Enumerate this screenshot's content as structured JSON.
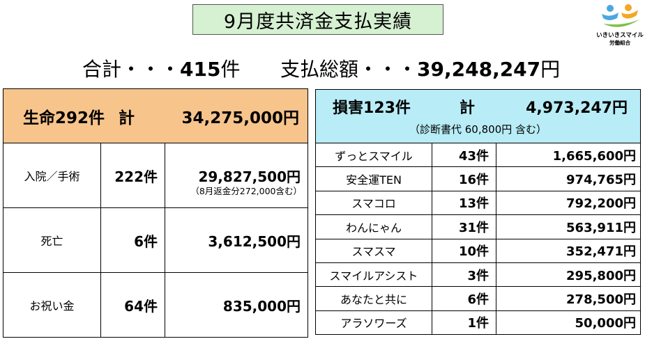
{
  "title": "9月度共済金支払実績",
  "logo": {
    "line1": "いきいきスマイル",
    "line2": "労働組合",
    "colors": [
      "#f5a623",
      "#4aa8e0",
      "#7cc243"
    ]
  },
  "summary": {
    "count_label": "合計・・・",
    "count_value": "415",
    "count_unit": "件",
    "total_label": "支払総額・・・",
    "total_value": "39,248,247",
    "total_unit": "円"
  },
  "life": {
    "header_name": "生命292件",
    "header_kei": "計",
    "header_amount": "34,275,000円",
    "rows": [
      {
        "label": "入院／手術",
        "count": "222件",
        "amount": "29,827,500円",
        "note": "（8月返金分272,000含む）"
      },
      {
        "label": "死亡",
        "count": "6件",
        "amount": "3,612,500円"
      },
      {
        "label": "お祝い金",
        "count": "64件",
        "amount": "835,000円"
      }
    ]
  },
  "damage": {
    "header_name": "損害123件",
    "header_kei": "計",
    "header_amount": "4,973,247円",
    "header_note": "（診断書代 60,800円 含む）",
    "rows": [
      {
        "label": "ずっとスマイル",
        "count": "43件",
        "amount": "1,665,600円"
      },
      {
        "label": "安全運TEN",
        "count": "16件",
        "amount": "974,765円"
      },
      {
        "label": "スマコロ",
        "count": "13件",
        "amount": "792,200円"
      },
      {
        "label": "わんにゃん",
        "count": "31件",
        "amount": "563,911円"
      },
      {
        "label": "スマスマ",
        "count": "10件",
        "amount": "352,471円"
      },
      {
        "label": "スマイルアシスト",
        "count": "3件",
        "amount": "295,800円"
      },
      {
        "label": "あなたと共に",
        "count": "6件",
        "amount": "278,500円"
      },
      {
        "label": "アラソワーズ",
        "count": "1件",
        "amount": "50,000円"
      }
    ]
  },
  "colors": {
    "title_bg": "#d6f0d2",
    "life_header_bg": "#f7c48c",
    "damage_header_bg": "#b8ecf7"
  }
}
